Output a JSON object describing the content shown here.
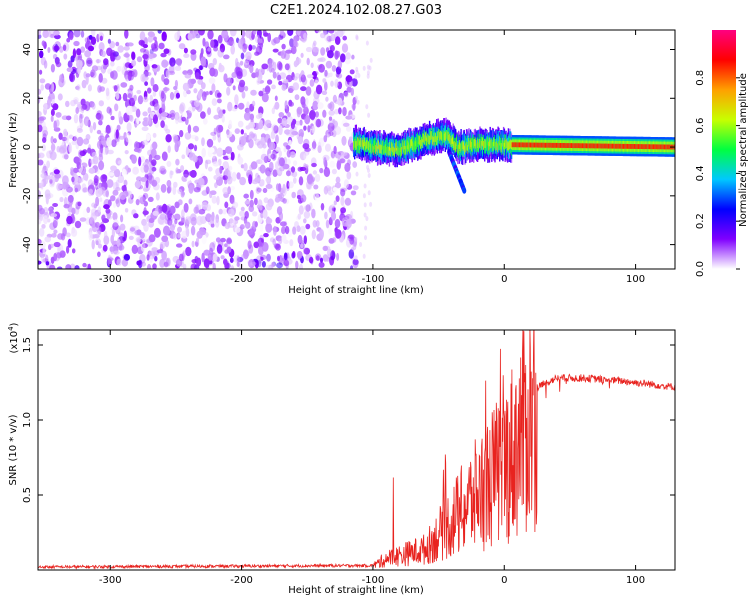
{
  "title": "C2E1.2024.102.08.27.G03",
  "colors": {
    "snr_line": "#e8231f",
    "background": "#ffffff",
    "axis": "#000000"
  },
  "chart_data": [
    {
      "type": "heatmap",
      "xlabel": "Height of straight line (km)",
      "ylabel": "Frequency (Hz)",
      "xlim": [
        -355,
        130
      ],
      "ylim": [
        -50,
        48
      ],
      "x_ticks": [
        {
          "value": -300,
          "label": "-300"
        },
        {
          "value": -200,
          "label": "-200"
        },
        {
          "value": -100,
          "label": "-100"
        },
        {
          "value": 0,
          "label": "0"
        },
        {
          "value": 100,
          "label": "100"
        }
      ],
      "y_ticks": [
        {
          "value": 40,
          "label": "40"
        },
        {
          "value": 20,
          "label": "20"
        },
        {
          "value": 0,
          "label": "0"
        },
        {
          "value": -20,
          "label": "-20"
        },
        {
          "value": -40,
          "label": "-40"
        }
      ],
      "colorbar": {
        "label": "Normalized spectral amplitude",
        "range": [
          0,
          1
        ],
        "ticks": [
          {
            "value": 0.0,
            "label": "0.0"
          },
          {
            "value": 0.2,
            "label": "0.2"
          },
          {
            "value": 0.4,
            "label": "0.4"
          },
          {
            "value": 0.6,
            "label": "0.6"
          },
          {
            "value": 0.8,
            "label": "0.8"
          }
        ],
        "colormap": [
          "#ffffff",
          "#8000ff",
          "#0000ff",
          "#00c8ff",
          "#00ff40",
          "#c8ff00",
          "#ffa000",
          "#ff0000",
          "#ff0080"
        ]
      },
      "regions": {
        "noise_x_range": [
          -355,
          -113
        ],
        "carrier_track": [
          {
            "x": -115,
            "freq": 2
          },
          {
            "x": -100,
            "freq": 0
          },
          {
            "x": -80,
            "freq": -1
          },
          {
            "x": -60,
            "freq": 3
          },
          {
            "x": -45,
            "freq": 5
          },
          {
            "x": -35,
            "freq": 0
          },
          {
            "x": -20,
            "freq": 1
          },
          {
            "x": 0,
            "freq": 1
          },
          {
            "x": 130,
            "freq": 0
          }
        ]
      }
    },
    {
      "type": "line",
      "xlabel": "Height of straight line (km)",
      "ylabel": "SNR (10 * v/v)",
      "y_scale_label": "(x10",
      "y_scale_exp": "4",
      "y_scale_close": ")",
      "xlim": [
        -355,
        130
      ],
      "ylim": [
        0,
        1.6
      ],
      "x_ticks": [
        {
          "value": -300,
          "label": "-300"
        },
        {
          "value": -200,
          "label": "-200"
        },
        {
          "value": -100,
          "label": "-100"
        },
        {
          "value": 0,
          "label": "0"
        },
        {
          "value": 100,
          "label": "100"
        }
      ],
      "y_ticks": [
        {
          "value": 0.5,
          "label": "0.5"
        },
        {
          "value": 1.0,
          "label": "1.0"
        },
        {
          "value": 1.5,
          "label": "1.5"
        }
      ],
      "series_profile": [
        {
          "x": -355,
          "y": 0.02
        },
        {
          "x": -100,
          "y": 0.03
        },
        {
          "x": -90,
          "y": 0.08
        },
        {
          "x": -60,
          "y": 0.15
        },
        {
          "x": -40,
          "y": 0.35
        },
        {
          "x": -25,
          "y": 0.5
        },
        {
          "x": -15,
          "y": 0.6
        },
        {
          "x": 0,
          "y": 0.75
        },
        {
          "x": 15,
          "y": 1.0
        },
        {
          "x": 25,
          "y": 1.22
        },
        {
          "x": 40,
          "y": 1.28
        },
        {
          "x": 60,
          "y": 1.28
        },
        {
          "x": 90,
          "y": 1.26
        },
        {
          "x": 130,
          "y": 1.22
        }
      ]
    }
  ]
}
